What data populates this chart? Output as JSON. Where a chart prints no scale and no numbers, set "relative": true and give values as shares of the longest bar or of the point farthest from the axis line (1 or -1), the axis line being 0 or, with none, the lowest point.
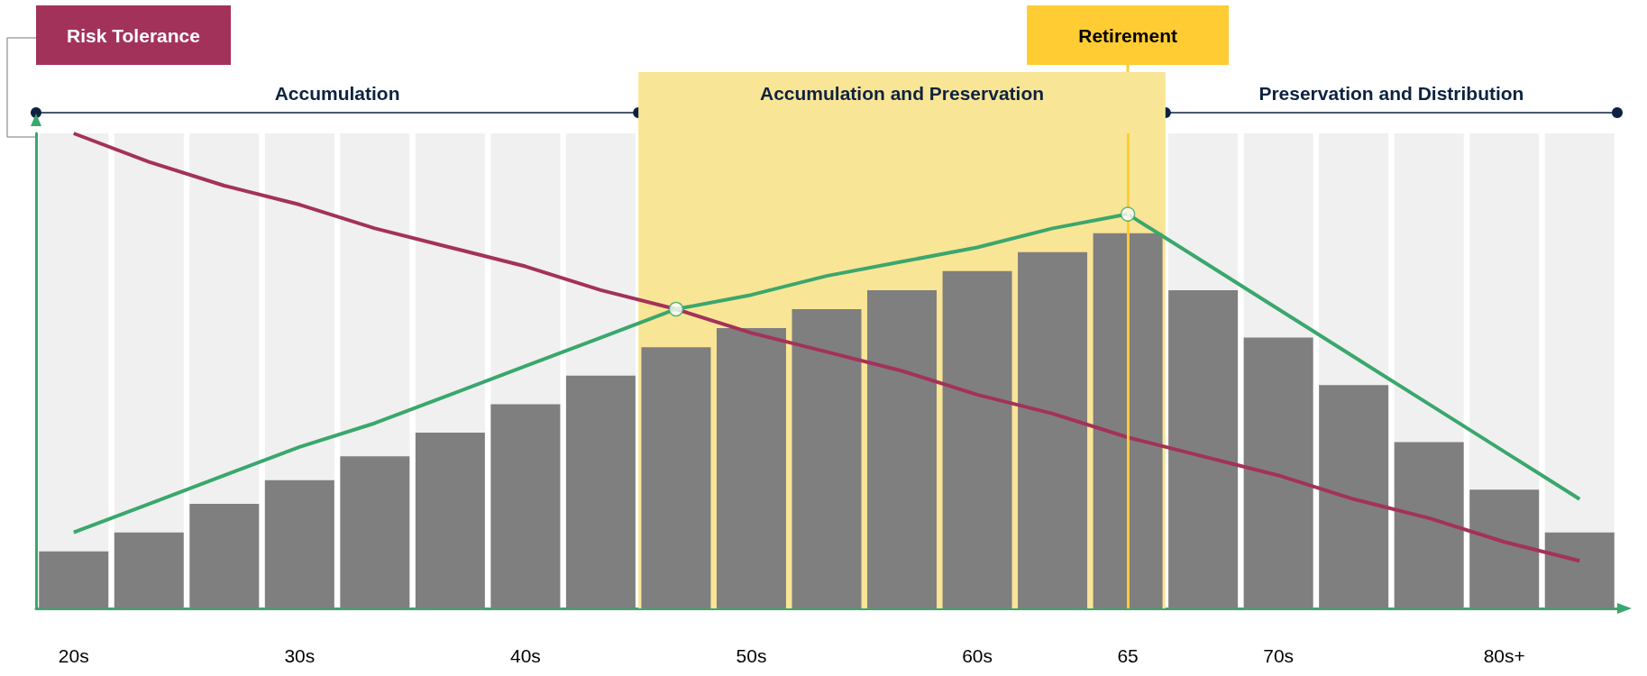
{
  "chart_data": {
    "type": "bar",
    "relative": true,
    "categories": [
      "20s",
      null,
      null,
      "30s",
      null,
      null,
      "40s",
      null,
      null,
      "50s",
      null,
      null,
      "60s",
      null,
      "65",
      null,
      "70s",
      null,
      null,
      "80s+",
      null
    ],
    "series": [
      {
        "color": "#7f7f7f",
        "values": [
          0.12,
          0.16,
          0.22,
          0.27,
          0.32,
          0.37,
          0.43,
          0.49,
          0.55,
          0.59,
          0.63,
          0.67,
          0.71,
          0.75,
          0.79,
          0.67,
          0.57,
          0.47,
          0.35,
          0.25,
          0.16
        ]
      },
      {
        "type": "line",
        "name": "Risk Tolerance",
        "color": "#a3325a",
        "values": [
          1.0,
          0.94,
          0.89,
          0.85,
          0.8,
          0.76,
          0.72,
          0.67,
          0.63,
          0.58,
          0.54,
          0.5,
          0.45,
          0.41,
          0.36,
          0.32,
          0.28,
          0.23,
          0.19,
          0.14,
          0.1
        ]
      },
      {
        "type": "line",
        "color": "#3aa76d",
        "values": [
          0.16,
          0.22,
          0.28,
          0.34,
          0.39,
          0.45,
          0.51,
          0.57,
          0.63,
          0.66,
          0.7,
          0.73,
          0.76,
          0.8,
          0.83,
          0.73,
          0.63,
          0.53,
          0.43,
          0.33,
          0.23
        ]
      },
      {
        "type": "scatter",
        "color": "#ffffff",
        "marker": "circle",
        "values": [
          null,
          null,
          null,
          null,
          null,
          null,
          null,
          null,
          0.63,
          null,
          null,
          null,
          null,
          null,
          0.83,
          null,
          null,
          null,
          null,
          null,
          null
        ]
      }
    ],
    "annotations": [
      "Accumulation",
      "Accumulation and Preservation",
      "Preservation and Distribution"
    ],
    "ref_lines": [
      {
        "axis": "x",
        "value": "65",
        "label": "Retirement",
        "color": "#ffcc33"
      }
    ],
    "legend": false
  }
}
